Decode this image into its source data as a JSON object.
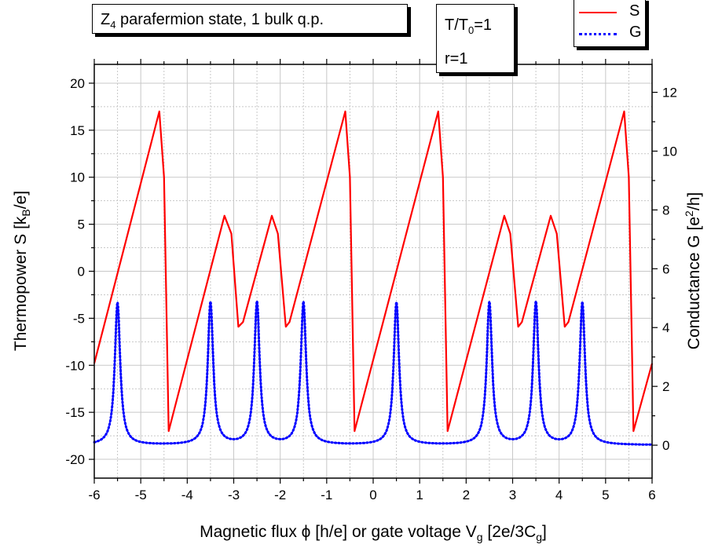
{
  "chart_data": {
    "type": "line",
    "title": "Z4 parafermion state, 1 bulk q.p.",
    "title_parts": {
      "pre": "Z",
      "sub": "4",
      "post": " parafermion state, 1 bulk q.p."
    },
    "params": {
      "line1": {
        "pre": "T/T",
        "sub": "0",
        "post": "=1"
      },
      "line2": "r=1"
    },
    "xlabel": {
      "pre": "Magnetic flux ϕ [h/e] or gate voltage V",
      "sub1": "g",
      "mid": " [2e/3C",
      "sub2": "g",
      "post": "]"
    },
    "ylabel_left": {
      "pre": "Thermopower S [k",
      "sub": "B",
      "post": "/e]"
    },
    "ylabel_right": {
      "pre": "Conductance G [e",
      "sup": "2",
      "post": "/h]"
    },
    "xlim": [
      -6,
      6
    ],
    "ylim_left": [
      -22,
      22
    ],
    "ylim_right": [
      -1.12,
      12.95
    ],
    "x_ticks": [
      -6,
      -5,
      -4,
      -3,
      -2,
      -1,
      0,
      1,
      2,
      3,
      4,
      5,
      6
    ],
    "y_ticks_left": [
      -20,
      -15,
      -10,
      -5,
      0,
      5,
      10,
      15,
      20
    ],
    "y_ticks_right": [
      0,
      2,
      4,
      6,
      8,
      10,
      12
    ],
    "grid": true,
    "legend_position": "top-right",
    "series": [
      {
        "name": "S",
        "axis": "left",
        "color": "#ff0000",
        "style": "solid",
        "points": [
          [
            -6.0,
            -9.8
          ],
          [
            -4.6,
            17.0
          ],
          [
            -4.5,
            10.0
          ],
          [
            -4.4,
            -17.0
          ],
          [
            -3.2,
            5.9
          ],
          [
            -3.05,
            4.0
          ],
          [
            -2.9,
            -5.9
          ],
          [
            -2.8,
            -5.4
          ],
          [
            -2.18,
            5.9
          ],
          [
            -2.05,
            4.0
          ],
          [
            -1.88,
            -5.9
          ],
          [
            -1.8,
            -5.4
          ],
          [
            -0.6,
            17.0
          ],
          [
            -0.5,
            10.0
          ],
          [
            -0.4,
            -17.0
          ],
          [
            1.4,
            17.0
          ],
          [
            1.5,
            10.0
          ],
          [
            1.6,
            -17.0
          ],
          [
            2.82,
            5.9
          ],
          [
            2.95,
            4.0
          ],
          [
            3.12,
            -5.9
          ],
          [
            3.2,
            -5.4
          ],
          [
            3.82,
            5.9
          ],
          [
            3.95,
            4.0
          ],
          [
            4.12,
            -5.9
          ],
          [
            4.2,
            -5.4
          ],
          [
            5.4,
            17.0
          ],
          [
            5.5,
            10.0
          ],
          [
            5.6,
            -17.0
          ],
          [
            6.0,
            -9.8
          ]
        ]
      },
      {
        "name": "G",
        "axis": "right",
        "color": "#0000ff",
        "style": "dotted",
        "baseline": 0,
        "peak_height": 4.85,
        "peak_width": 0.07,
        "peak_positions": [
          -5.5,
          -3.5,
          -2.5,
          -1.5,
          0.5,
          2.5,
          3.5,
          4.5
        ]
      }
    ]
  }
}
